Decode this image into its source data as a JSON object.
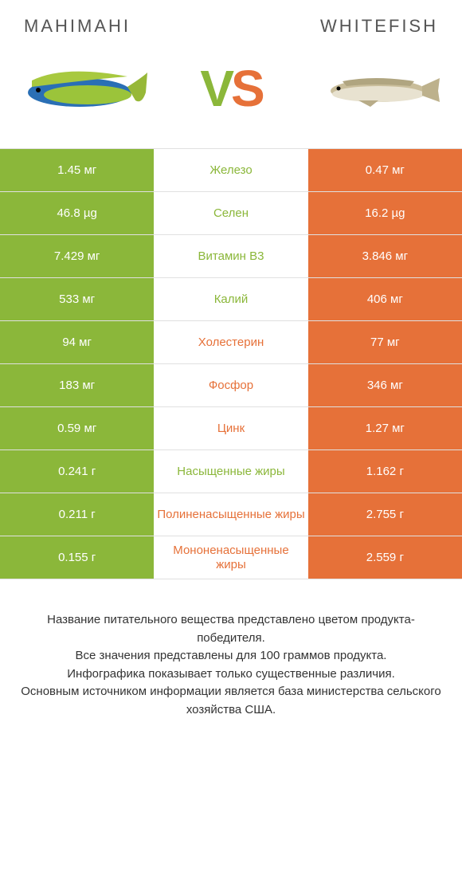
{
  "header": {
    "left_title": "MAHIMAHI",
    "right_title": "WHITEFISH"
  },
  "colors": {
    "left": "#8bb73a",
    "right": "#e67139",
    "left_fish_body": "#2a6fb5",
    "left_fish_fin": "#b3c93a",
    "right_fish": "#c4b896"
  },
  "vs": {
    "v": "V",
    "s": "S"
  },
  "rows": [
    {
      "left": "1.45 мг",
      "mid": "Железо",
      "right": "0.47 мг",
      "winner": "left"
    },
    {
      "left": "46.8 µg",
      "mid": "Селен",
      "right": "16.2 µg",
      "winner": "left"
    },
    {
      "left": "7.429 мг",
      "mid": "Витамин B3",
      "right": "3.846 мг",
      "winner": "left"
    },
    {
      "left": "533 мг",
      "mid": "Калий",
      "right": "406 мг",
      "winner": "left"
    },
    {
      "left": "94 мг",
      "mid": "Холестерин",
      "right": "77 мг",
      "winner": "right"
    },
    {
      "left": "183 мг",
      "mid": "Фосфор",
      "right": "346 мг",
      "winner": "right"
    },
    {
      "left": "0.59 мг",
      "mid": "Цинк",
      "right": "1.27 мг",
      "winner": "right"
    },
    {
      "left": "0.241 г",
      "mid": "Насыщенные жиры",
      "right": "1.162 г",
      "winner": "left"
    },
    {
      "left": "0.211 г",
      "mid": "Полиненасыщенные жиры",
      "right": "2.755 г",
      "winner": "right"
    },
    {
      "left": "0.155 г",
      "mid": "Мононенасыщенные жиры",
      "right": "2.559 г",
      "winner": "right"
    }
  ],
  "footer": {
    "line1": "Название питательного вещества представлено цветом продукта-победителя.",
    "line2": "Все значения представлены для 100 граммов продукта.",
    "line3": "Инфографика показывает только существенные различия.",
    "line4": "Основным источником информации является база министерства сельского хозяйства США."
  }
}
